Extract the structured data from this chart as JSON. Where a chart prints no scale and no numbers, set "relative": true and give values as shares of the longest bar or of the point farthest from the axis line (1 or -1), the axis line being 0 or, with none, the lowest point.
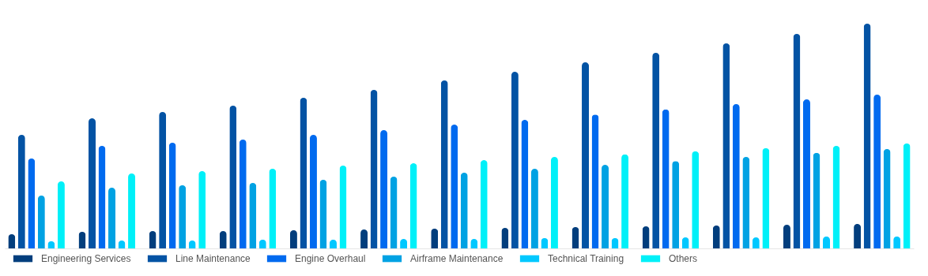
{
  "chart_data": {
    "type": "bar",
    "relative": true,
    "legend": "bottom",
    "categories": [
      null,
      null,
      null,
      null,
      null,
      null,
      null,
      null,
      null,
      null,
      null,
      null,
      null
    ],
    "series": [
      {
        "name": "Engineering Services",
        "color": "#023e7d",
        "values": [
          0.063,
          0.074,
          0.077,
          0.077,
          0.081,
          0.084,
          0.088,
          0.091,
          0.095,
          0.098,
          0.102,
          0.105,
          0.109
        ]
      },
      {
        "name": "Line Maintenance",
        "color": "#0353a4",
        "values": [
          0.505,
          0.579,
          0.607,
          0.635,
          0.67,
          0.705,
          0.747,
          0.786,
          0.828,
          0.87,
          0.912,
          0.954,
          1
        ]
      },
      {
        "name": "Engine Overhaul",
        "color": "#006aef",
        "values": [
          0.4,
          0.456,
          0.47,
          0.484,
          0.505,
          0.526,
          0.551,
          0.572,
          0.596,
          0.618,
          0.642,
          0.663,
          0.684
        ]
      },
      {
        "name": "Airframe Maintenance",
        "color": "#00a2e3",
        "values": [
          0.235,
          0.27,
          0.281,
          0.291,
          0.305,
          0.319,
          0.337,
          0.354,
          0.372,
          0.389,
          0.407,
          0.425,
          0.442
        ]
      },
      {
        "name": "Technical Training",
        "color": "#00c8ff",
        "values": [
          0.032,
          0.035,
          0.035,
          0.039,
          0.039,
          0.042,
          0.042,
          0.046,
          0.046,
          0.049,
          0.049,
          0.053,
          0.053
        ]
      },
      {
        "name": "Others",
        "color": "#00f0f8",
        "values": [
          0.298,
          0.333,
          0.344,
          0.354,
          0.368,
          0.379,
          0.393,
          0.407,
          0.418,
          0.432,
          0.446,
          0.456,
          0.467
        ]
      }
    ]
  }
}
